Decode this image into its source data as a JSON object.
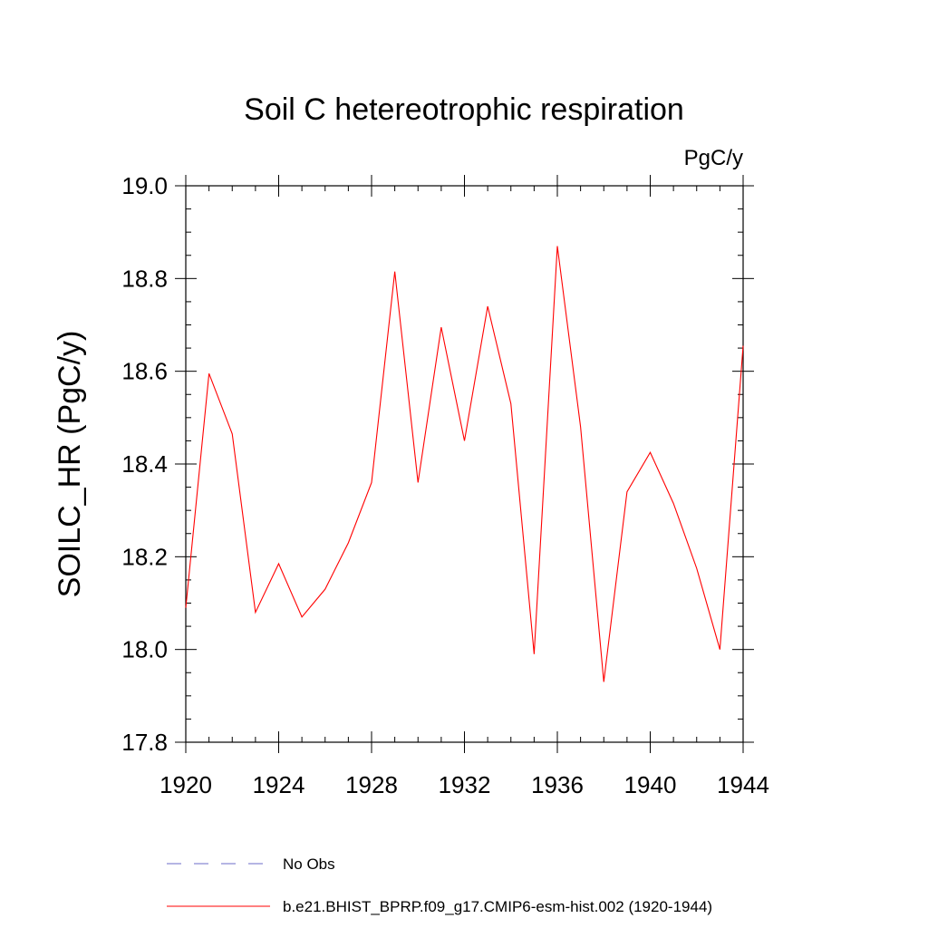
{
  "chart_data": {
    "type": "line",
    "title": "Soil C hetereotrophic respiration",
    "units": "PgC/y",
    "ylabel": "SOILC_HR  (PgC/y)",
    "xlabel": "",
    "xlim": [
      1920,
      1944
    ],
    "ylim": [
      17.8,
      19.0
    ],
    "xticks": [
      1920,
      1924,
      1928,
      1932,
      1936,
      1940,
      1944
    ],
    "xtick_labels": [
      "1920",
      "1924",
      "1928",
      "1932",
      "1936",
      "1940",
      "1944"
    ],
    "yticks": [
      17.8,
      18.0,
      18.2,
      18.4,
      18.6,
      18.8,
      19.0
    ],
    "ytick_labels": [
      "17.8",
      "18.0",
      "18.2",
      "18.4",
      "18.6",
      "18.8",
      "19.0"
    ],
    "grid": false,
    "series": [
      {
        "name": "b.e21.BHIST_BPRP.f09_g17.CMIP6-esm-hist.002 (1920-1944)",
        "color": "#ff0000",
        "x": [
          1920,
          1921,
          1922,
          1923,
          1924,
          1925,
          1926,
          1927,
          1928,
          1929,
          1930,
          1931,
          1932,
          1933,
          1934,
          1935,
          1936,
          1937,
          1938,
          1939,
          1940,
          1941,
          1942,
          1943,
          1944
        ],
        "values": [
          18.09,
          18.595,
          18.465,
          18.08,
          18.185,
          18.07,
          18.13,
          18.23,
          18.36,
          18.815,
          18.36,
          18.695,
          18.45,
          18.74,
          18.53,
          17.99,
          18.87,
          18.48,
          17.93,
          18.34,
          18.425,
          18.315,
          18.175,
          18.0,
          18.655
        ]
      }
    ],
    "legend": [
      {
        "label": "No Obs",
        "color": "#6b6bc8",
        "style": "dashed"
      },
      {
        "label": "b.e21.BHIST_BPRP.f09_g17.CMIP6-esm-hist.002 (1920-1944)",
        "color": "#ff0000",
        "style": "solid"
      }
    ],
    "legend_position": "bottom"
  }
}
